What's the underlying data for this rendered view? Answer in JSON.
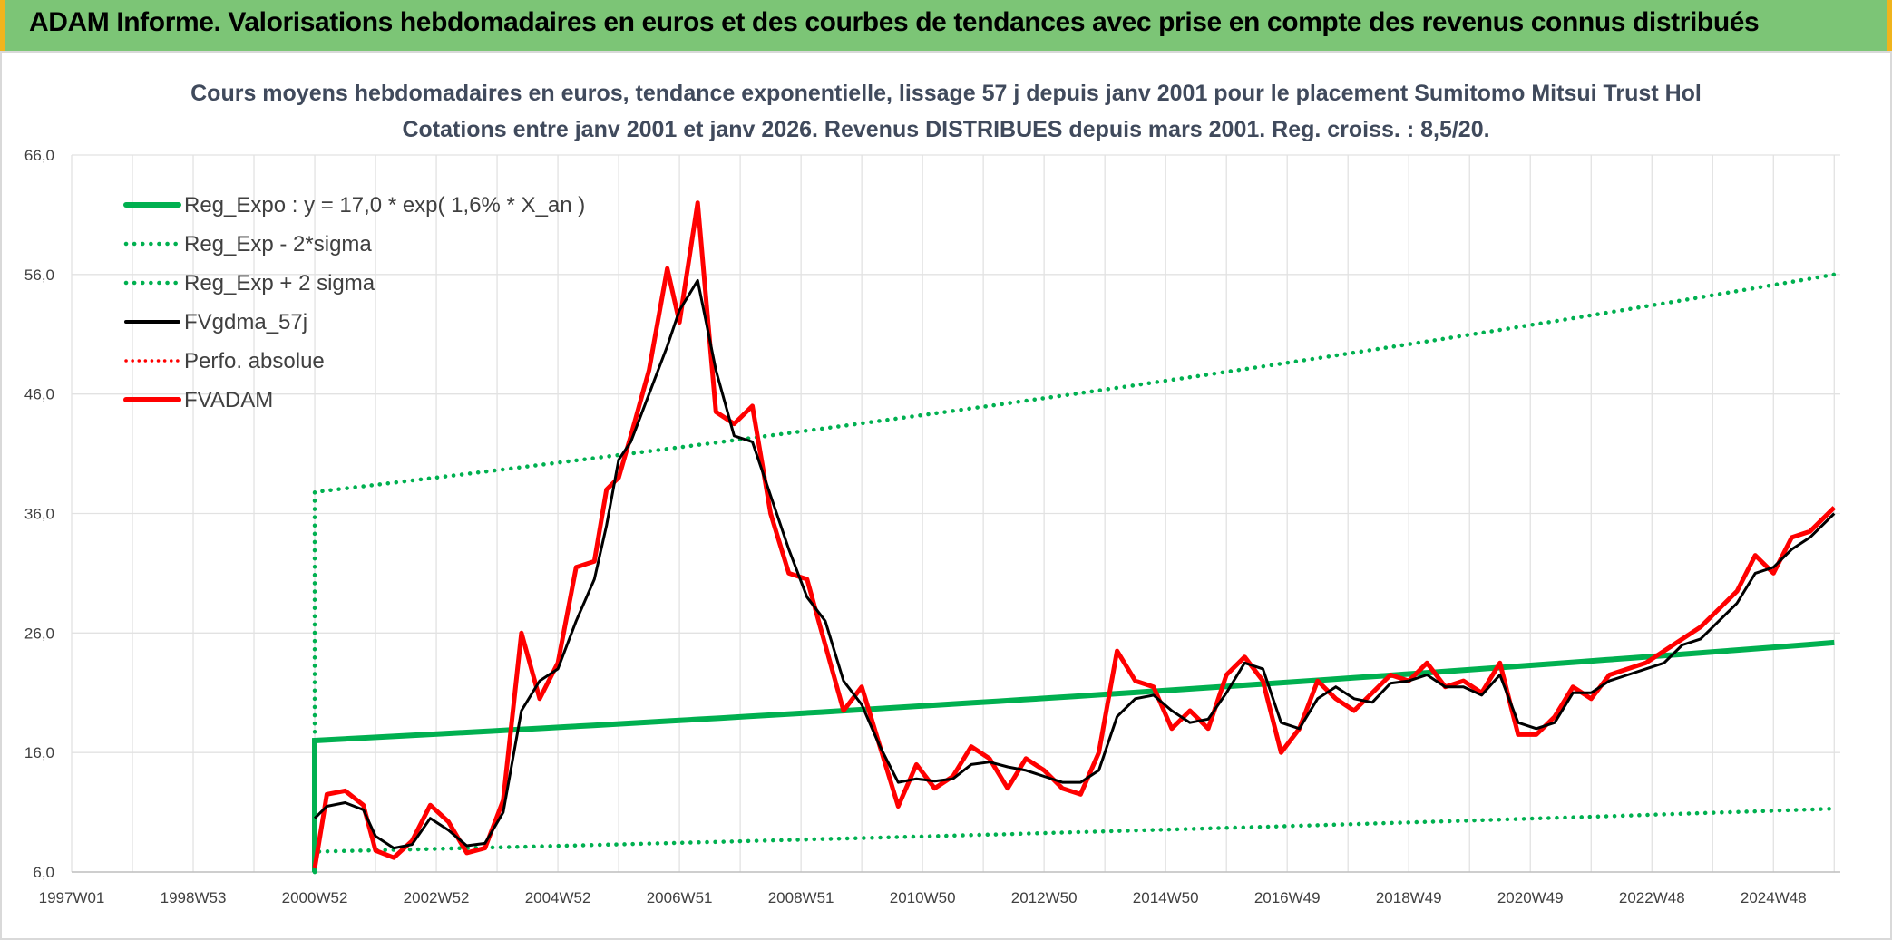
{
  "header": {
    "title": "ADAM Informe. Valorisations hebdomadaires en euros et des courbes de tendances avec prise en compte des revenus connus distribués"
  },
  "colors": {
    "header_bg": "#7cc576",
    "header_border": "#f0b41c",
    "regression": "#00b050",
    "smoothed": "#000000",
    "price": "#ff0000",
    "grid": "#e2e2e2"
  },
  "chart_data": {
    "type": "line",
    "title": "Cours moyens hebdomadaires en euros, tendance exponentielle, lissage 57 j depuis janv 2001 pour le placement Sumitomo Mitsui Trust Hol",
    "subtitle": "Cotations entre janv 2001 et janv 2026. Revenus DISTRIBUES depuis mars 2001. Reg. croiss. : 8,5/20.",
    "xlabel": "",
    "ylabel": "",
    "x_range": [
      1997.0,
      2026.1
    ],
    "ylim": [
      6,
      66
    ],
    "y_ticks": [
      "6,0",
      "16,0",
      "26,0",
      "36,0",
      "46,0",
      "56,0",
      "66,0"
    ],
    "x_ticks": [
      {
        "label": "1997W01",
        "year": 1997.0
      },
      {
        "label": "1998W53",
        "year": 1999.0
      },
      {
        "label": "2000W52",
        "year": 2001.0
      },
      {
        "label": "2002W52",
        "year": 2003.0
      },
      {
        "label": "2004W52",
        "year": 2005.0
      },
      {
        "label": "2006W51",
        "year": 2007.0
      },
      {
        "label": "2008W51",
        "year": 2009.0
      },
      {
        "label": "2010W50",
        "year": 2011.0
      },
      {
        "label": "2012W50",
        "year": 2013.0
      },
      {
        "label": "2014W50",
        "year": 2015.0
      },
      {
        "label": "2016W49",
        "year": 2017.0
      },
      {
        "label": "2018W49",
        "year": 2019.0
      },
      {
        "label": "2020W49",
        "year": 2021.0
      },
      {
        "label": "2022W48",
        "year": 2023.0
      },
      {
        "label": "2024W48",
        "year": 2025.0
      }
    ],
    "grid": true,
    "legend_position": "top-left",
    "legend": [
      {
        "key": "reg",
        "label": "Reg_Expo : y = 17,0 * exp( 1,6% *  X_an )"
      },
      {
        "key": "low",
        "label": "Reg_Exp - 2*sigma"
      },
      {
        "key": "high",
        "label": "Reg_Exp + 2 sigma"
      },
      {
        "key": "smooth",
        "label": "FVgdma_57j"
      },
      {
        "key": "perf",
        "label": "Perfo. absolue"
      },
      {
        "key": "price",
        "label": "FVADAM"
      }
    ],
    "series": [
      {
        "name": "Reg_Expo : y = 17,0 * exp( 1,6% *  X_an )",
        "x": [
          2001.0,
          2026.0
        ],
        "y": [
          17.0,
          25.2
        ]
      },
      {
        "name": "Reg_Exp - 2*sigma",
        "x": [
          2001.0,
          2026.0
        ],
        "y": [
          7.7,
          11.3
        ]
      },
      {
        "name": "Reg_Exp + 2 sigma",
        "x": [
          2001.0,
          2026.0
        ],
        "y": [
          37.8,
          56.0
        ]
      },
      {
        "name": "FVgdma_57j",
        "x": [
          2001.0,
          2001.2,
          2001.5,
          2001.8,
          2002.0,
          2002.3,
          2002.6,
          2002.9,
          2003.2,
          2003.5,
          2003.8,
          2004.1,
          2004.4,
          2004.7,
          2005.0,
          2005.3,
          2005.6,
          2005.8,
          2006.0,
          2006.2,
          2006.5,
          2006.8,
          2007.0,
          2007.3,
          2007.6,
          2007.9,
          2008.2,
          2008.5,
          2008.8,
          2009.1,
          2009.4,
          2009.7,
          2010.0,
          2010.3,
          2010.6,
          2010.9,
          2011.2,
          2011.5,
          2011.8,
          2012.1,
          2012.4,
          2012.7,
          2013.0,
          2013.3,
          2013.6,
          2013.9,
          2014.2,
          2014.5,
          2014.8,
          2015.1,
          2015.4,
          2015.7,
          2016.0,
          2016.3,
          2016.6,
          2016.9,
          2017.2,
          2017.5,
          2017.8,
          2018.1,
          2018.4,
          2018.7,
          2019.0,
          2019.3,
          2019.6,
          2019.9,
          2020.2,
          2020.5,
          2020.8,
          2021.1,
          2021.4,
          2021.7,
          2022.0,
          2022.3,
          2022.6,
          2022.9,
          2023.2,
          2023.5,
          2023.8,
          2024.1,
          2024.4,
          2024.7,
          2025.0,
          2025.3,
          2025.6,
          2026.0
        ],
        "y": [
          10.5,
          11.5,
          11.8,
          11.2,
          9.0,
          8.0,
          8.3,
          10.5,
          9.5,
          8.2,
          8.4,
          11.0,
          19.5,
          22.0,
          23.0,
          27.0,
          30.5,
          35.0,
          40.5,
          42.0,
          46.0,
          50.0,
          53.0,
          55.5,
          48.0,
          42.5,
          42.0,
          37.5,
          33.0,
          29.0,
          27.0,
          22.0,
          20.0,
          16.5,
          13.5,
          13.8,
          13.6,
          13.8,
          15.0,
          15.2,
          14.8,
          14.5,
          14.0,
          13.5,
          13.5,
          14.5,
          19.0,
          20.5,
          20.8,
          19.5,
          18.5,
          18.8,
          21.0,
          23.5,
          23.0,
          18.5,
          18.0,
          20.5,
          21.5,
          20.5,
          20.2,
          21.8,
          22.0,
          22.5,
          21.5,
          21.5,
          20.8,
          22.5,
          18.5,
          18.0,
          18.5,
          21.0,
          21.0,
          22.0,
          22.5,
          23.0,
          23.5,
          25.0,
          25.5,
          27.0,
          28.5,
          31.0,
          31.5,
          33.0,
          34.0,
          36.0
        ]
      },
      {
        "name": "FVADAM",
        "x": [
          2001.0,
          2001.2,
          2001.5,
          2001.8,
          2002.0,
          2002.3,
          2002.6,
          2002.9,
          2003.2,
          2003.5,
          2003.8,
          2004.1,
          2004.4,
          2004.7,
          2005.0,
          2005.3,
          2005.6,
          2005.8,
          2006.0,
          2006.2,
          2006.5,
          2006.8,
          2007.0,
          2007.3,
          2007.6,
          2007.9,
          2008.2,
          2008.5,
          2008.8,
          2009.1,
          2009.4,
          2009.7,
          2010.0,
          2010.3,
          2010.6,
          2010.9,
          2011.2,
          2011.5,
          2011.8,
          2012.1,
          2012.4,
          2012.7,
          2013.0,
          2013.3,
          2013.6,
          2013.9,
          2014.2,
          2014.5,
          2014.8,
          2015.1,
          2015.4,
          2015.7,
          2016.0,
          2016.3,
          2016.6,
          2016.9,
          2017.2,
          2017.5,
          2017.8,
          2018.1,
          2018.4,
          2018.7,
          2019.0,
          2019.3,
          2019.6,
          2019.9,
          2020.2,
          2020.5,
          2020.8,
          2021.1,
          2021.4,
          2021.7,
          2022.0,
          2022.3,
          2022.6,
          2022.9,
          2023.2,
          2023.5,
          2023.8,
          2024.1,
          2024.4,
          2024.7,
          2025.0,
          2025.3,
          2025.6,
          2026.0
        ],
        "y": [
          6.3,
          12.5,
          12.8,
          11.6,
          7.8,
          7.2,
          8.6,
          11.6,
          10.2,
          7.6,
          8.0,
          12.0,
          26.0,
          20.5,
          23.5,
          31.5,
          32.0,
          38.0,
          39.0,
          42.5,
          48.0,
          56.5,
          52.0,
          62.0,
          44.5,
          43.5,
          45.0,
          36.0,
          31.0,
          30.5,
          25.0,
          19.5,
          21.5,
          16.5,
          11.5,
          15.0,
          13.0,
          14.0,
          16.5,
          15.5,
          13.0,
          15.5,
          14.5,
          13.0,
          12.5,
          16.0,
          24.5,
          22.0,
          21.5,
          18.0,
          19.5,
          18.0,
          22.5,
          24.0,
          22.0,
          16.0,
          18.0,
          22.0,
          20.5,
          19.5,
          21.0,
          22.5,
          22.0,
          23.5,
          21.5,
          22.0,
          21.0,
          23.5,
          17.5,
          17.5,
          19.0,
          21.5,
          20.5,
          22.5,
          23.0,
          23.5,
          24.5,
          25.5,
          26.5,
          28.0,
          29.5,
          32.5,
          31.0,
          34.0,
          34.5,
          36.5
        ]
      }
    ]
  }
}
